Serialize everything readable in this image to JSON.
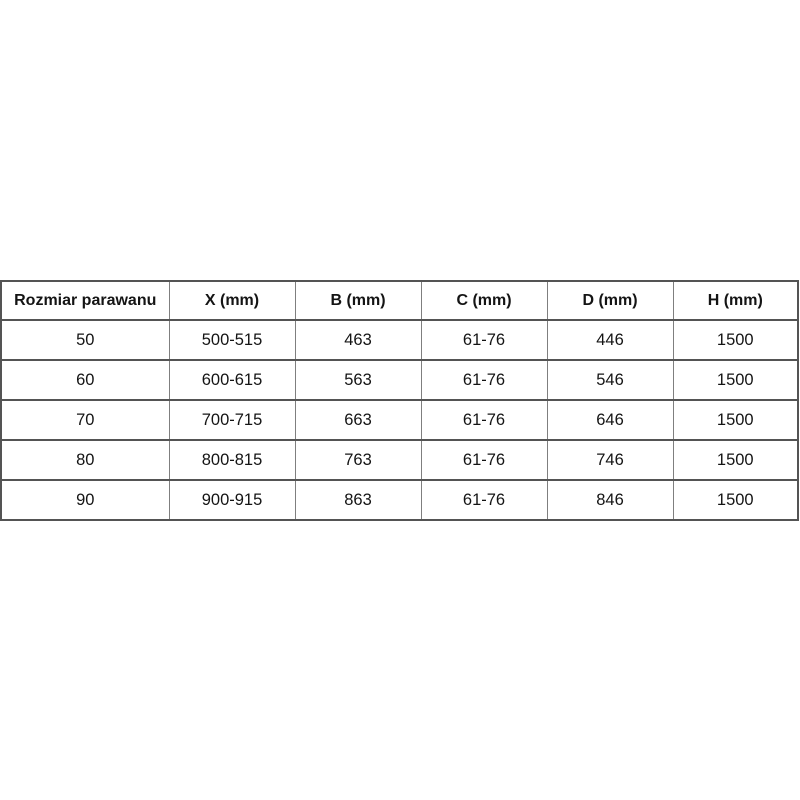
{
  "page": {
    "background": "#ffffff"
  },
  "table": {
    "headers": [
      "Rozmiar parawanu",
      "X (mm)",
      "B (mm)",
      "C (mm)",
      "D (mm)",
      "H (mm)"
    ],
    "rows": [
      [
        "50",
        "500-515",
        "463",
        "61-76",
        "446",
        "1500"
      ],
      [
        "60",
        "600-615",
        "563",
        "61-76",
        "546",
        "1500"
      ],
      [
        "70",
        "700-715",
        "663",
        "61-76",
        "646",
        "1500"
      ],
      [
        "80",
        "800-815",
        "763",
        "61-76",
        "746",
        "1500"
      ],
      [
        "90",
        "900-915",
        "863",
        "61-76",
        "846",
        "1500"
      ]
    ],
    "colors": {
      "border_dark": "#545454",
      "border_light": "#7f7f7f",
      "text": "#141414",
      "background": "#ffffff"
    }
  }
}
